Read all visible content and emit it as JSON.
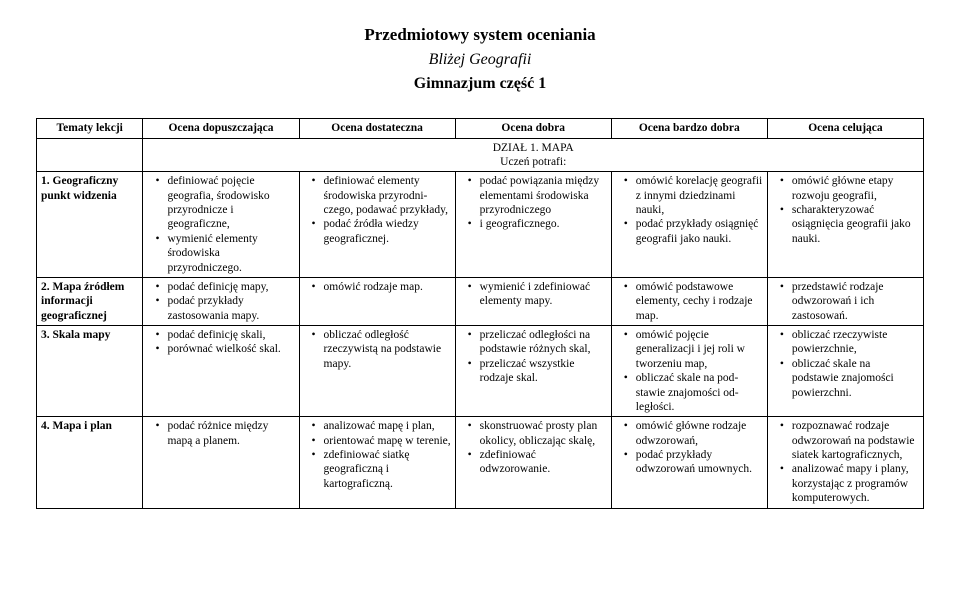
{
  "title": "Przedmiotowy system oceniania",
  "subtitle_italic": "Bliżej Geografii",
  "subtitle_bold": "Gimnazjum część 1",
  "columns": [
    "Tematy lekcji",
    "Ocena dopuszczająca",
    "Ocena dostateczna",
    "Ocena dobra",
    "Ocena bardzo dobra",
    "Ocena celująca"
  ],
  "section_line1": "DZIAŁ 1.  MAPA",
  "section_line2": "Uczeń potrafi:",
  "rows": [
    {
      "topic": "1. Geograficzny punkt widzenia",
      "c2": [
        "definiować pojęcie geografia, środowisko przyrodnicze i geograficzne,",
        "wymienić elementy środowiska przyrodniczego."
      ],
      "c3": [
        "definiować elementy środowiska przyrodni­czego, podawać przykłady,",
        "podać źródła wiedzy geograficznej."
      ],
      "c4": [
        "podać powiązania między elementami środowiska przyrodniczego",
        "i geograficznego."
      ],
      "c5": [
        "omówić korelację geografii z innymi dziedzinami nauki,",
        "podać przykłady osiągnięć geografii jako nauki."
      ],
      "c6": [
        "omówić główne etapy rozwoju geografii,",
        "scharakteryzować osiągnięcia geografii jako nauki."
      ]
    },
    {
      "topic": "2. Mapa źródłem informacji geograficznej",
      "c2": [
        "podać definicję mapy,",
        "podać przykłady zastosowania mapy."
      ],
      "c3": [
        "omówić rodzaje map."
      ],
      "c4": [
        "wymienić i zdefiniować elementy mapy."
      ],
      "c5": [
        "omówić podstawowe elementy, cechy i rodzaje map."
      ],
      "c6": [
        "przedstawić rodzaje odwzorowań i ich zastosowań."
      ]
    },
    {
      "topic": "3. Skala mapy",
      "c2": [
        "podać definicję skali,",
        "porównać wielkość skal."
      ],
      "c3": [
        "obliczać odległość rzeczywistą na podstawie mapy."
      ],
      "c4": [
        "przeliczać odległości na podstawie różnych skal,",
        "przeliczać wszystkie rodzaje skal."
      ],
      "c5": [
        "omówić pojęcie generalizacji i jej roli w tworzeniu map,",
        "obliczać skale na pod­stawie znajomości od­ległości."
      ],
      "c6": [
        "obliczać rzeczywiste powierzchnie,",
        "obliczać skale na podstawie znajomości powierzchni."
      ]
    },
    {
      "topic": "4. Mapa i plan",
      "c2": [
        "podać różnice między mapą a planem."
      ],
      "c3": [
        "analizować mapę i plan,",
        "orientować mapę w terenie,",
        "zdefiniować siatkę geograficzną i kartograficzną."
      ],
      "c4": [
        "skonstruować prosty plan okolicy, obliczając skalę,",
        "zdefiniować odwzorowanie."
      ],
      "c5": [
        "omówić główne rodzaje odwzorowań,",
        "podać przykłady odwzorowań umownych."
      ],
      "c6": [
        "rozpoznawać rodzaje odwzorowań na pod­stawie siatek kartograficznych,",
        "analizować mapy i plany, korzystając z programów komputerowych."
      ]
    }
  ]
}
